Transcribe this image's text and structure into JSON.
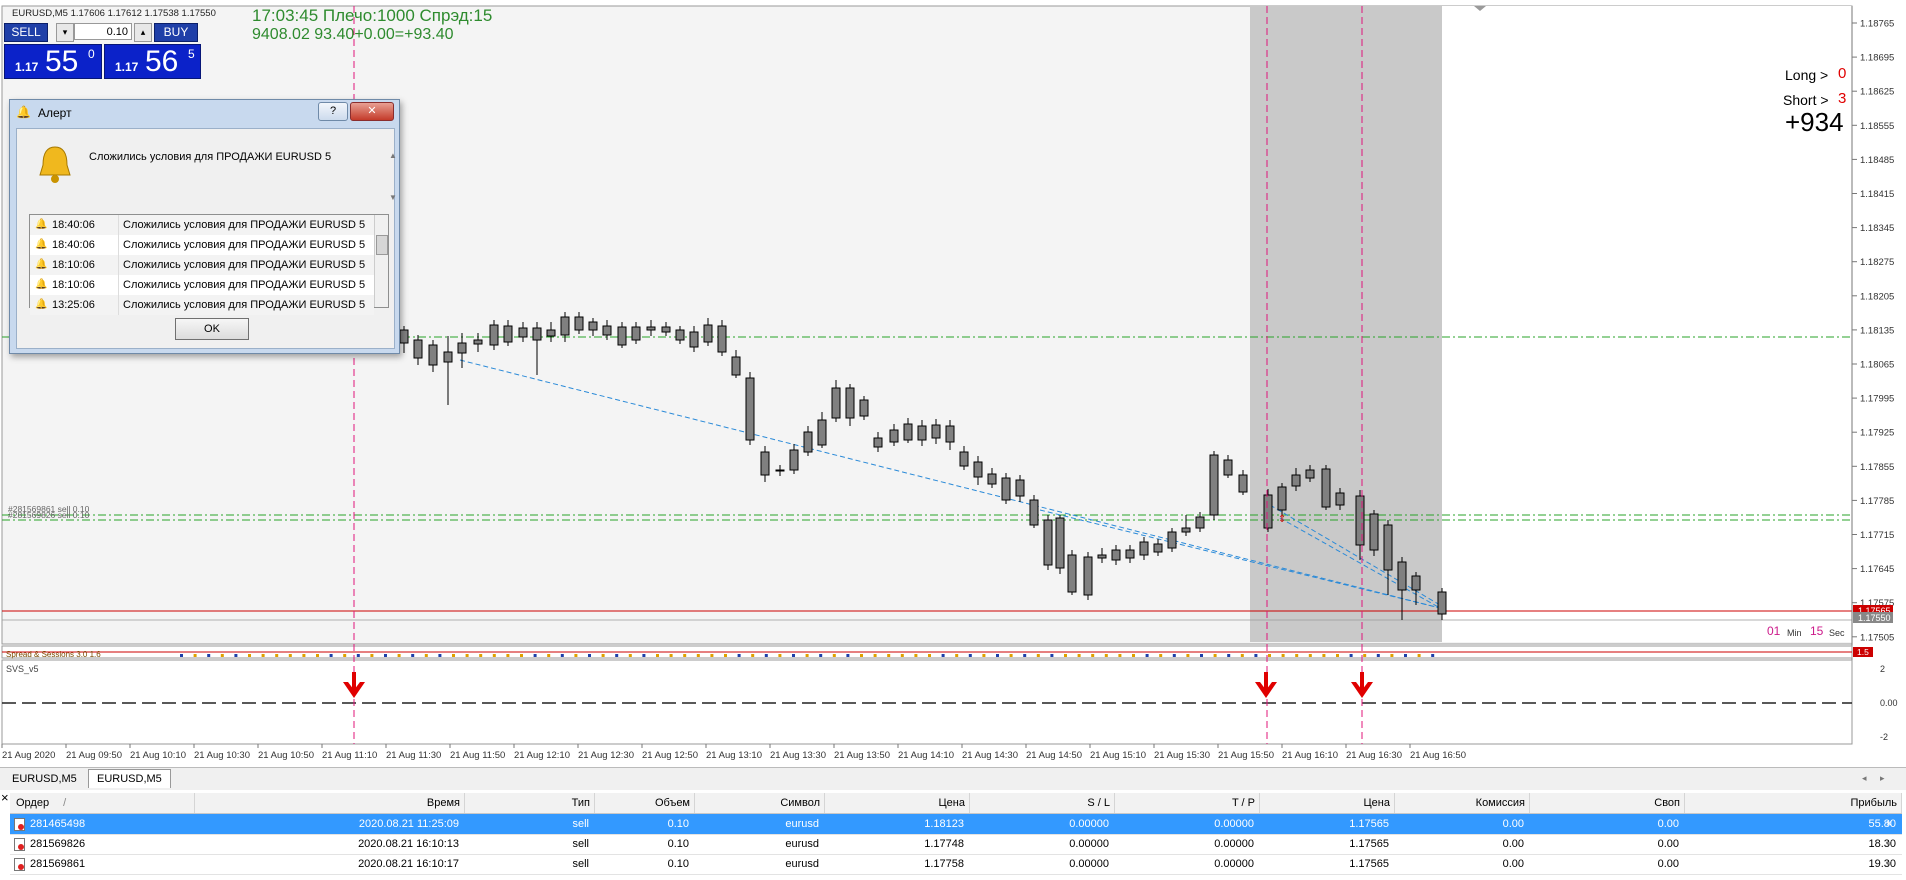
{
  "chart": {
    "symbol_info": "EURUSD,M5  1.17606 1.17612 1.17538 1.17550",
    "status_line1": "17:03:45 Плечо:1000 Спрэд:15",
    "status_line2": "9408.02   93.40+0.00=+93.40",
    "long_label": "Long >",
    "long_value": "0",
    "short_label": "Short >",
    "short_value": "3",
    "profit_big": "+934",
    "timer_min_value": "01",
    "timer_min_label": "Min",
    "timer_sec_value": "15",
    "timer_sec_label": "Sec",
    "order_line_1": "#281569861 sell 0.10",
    "order_line_2": "#281569826 sell 0.10",
    "price_axis": [
      "1.18765",
      "1.18695",
      "1.18625",
      "1.18555",
      "1.18485",
      "1.18415",
      "1.18345",
      "1.18275",
      "1.18205",
      "1.18135",
      "1.18065",
      "1.17995",
      "1.17925",
      "1.17855",
      "1.17785",
      "1.17715",
      "1.17645",
      "1.17575",
      "1.17505"
    ],
    "price_tag_red": "1.17565",
    "price_tag_gray": "1.17550",
    "time_axis": [
      "21 Aug 2020",
      "21 Aug 09:50",
      "21 Aug 10:10",
      "21 Aug 10:30",
      "21 Aug 10:50",
      "21 Aug 11:10",
      "21 Aug 11:30",
      "21 Aug 11:50",
      "21 Aug 12:10",
      "21 Aug 12:30",
      "21 Aug 12:50",
      "21 Aug 13:10",
      "21 Aug 13:30",
      "21 Aug 13:50",
      "21 Aug 14:10",
      "21 Aug 14:30",
      "21 Aug 14:50",
      "21 Aug 15:10",
      "21 Aug 15:30",
      "21 Aug 15:50",
      "21 Aug 16:10",
      "21 Aug 16:30",
      "21 Aug 16:50"
    ],
    "sub1_label": "Spread & Sessions 3.0 1.6",
    "sub1_value": "1.5",
    "sub2_label": "SVS_v5",
    "sub2_axis": [
      "2",
      "0.00",
      "-2"
    ],
    "colors": {
      "sell_arrow": "#e00000",
      "grid_green": "#29a329",
      "vline_pink": "#e0157a",
      "session": "#c9c9c9",
      "trendline": "#2a8ad8"
    }
  },
  "trade_panel": {
    "sell_label": "SELL",
    "buy_label": "BUY",
    "lot_value": "0.10",
    "bid_small": "1.17",
    "bid_big": "55",
    "bid_sup": "0",
    "ask_small": "1.17",
    "ask_big": "56",
    "ask_sup": "5"
  },
  "alert": {
    "title": "Алерт",
    "help": "?",
    "close": "✕",
    "message": "Сложились условия для ПРОДАЖИ EURUSD 5",
    "history": [
      {
        "time": "18:40:06",
        "text": "Сложились условия для ПРОДАЖИ EURUSD 5"
      },
      {
        "time": "18:40:06",
        "text": "Сложились условия для ПРОДАЖИ EURUSD 5"
      },
      {
        "time": "18:10:06",
        "text": "Сложились условия для ПРОДАЖИ EURUSD 5"
      },
      {
        "time": "18:10:06",
        "text": "Сложились условия для ПРОДАЖИ EURUSD 5"
      },
      {
        "time": "13:25:06",
        "text": "Сложились условия для ПРОДАЖИ EURUSD 5"
      }
    ],
    "ok_label": "OK"
  },
  "tabs": [
    "EURUSD,M5",
    "EURUSD,M5"
  ],
  "terminal": {
    "close_glyph": "×",
    "columns": [
      "Ордер",
      "Время",
      "Тип",
      "Объем",
      "Символ",
      "Цена",
      "S / L",
      "T / P",
      "Цена",
      "Комиссия",
      "Своп",
      "Прибыль"
    ],
    "sort_glyph": "/",
    "rows": [
      {
        "order": "281465498",
        "time": "2020.08.21 11:25:09",
        "type": "sell",
        "volume": "0.10",
        "symbol": "eurusd",
        "price": "1.18123",
        "sl": "0.00000",
        "tp": "0.00000",
        "cur": "1.17565",
        "commission": "0.00",
        "swap": "0.00",
        "profit": "55.80"
      },
      {
        "order": "281569826",
        "time": "2020.08.21 16:10:13",
        "type": "sell",
        "volume": "0.10",
        "symbol": "eurusd",
        "price": "1.17748",
        "sl": "0.00000",
        "tp": "0.00000",
        "cur": "1.17565",
        "commission": "0.00",
        "swap": "0.00",
        "profit": "18.30"
      },
      {
        "order": "281569861",
        "time": "2020.08.21 16:10:17",
        "type": "sell",
        "volume": "0.10",
        "symbol": "eurusd",
        "price": "1.17758",
        "sl": "0.00000",
        "tp": "0.00000",
        "cur": "1.17565",
        "commission": "0.00",
        "swap": "0.00",
        "profit": "19.30"
      }
    ]
  }
}
